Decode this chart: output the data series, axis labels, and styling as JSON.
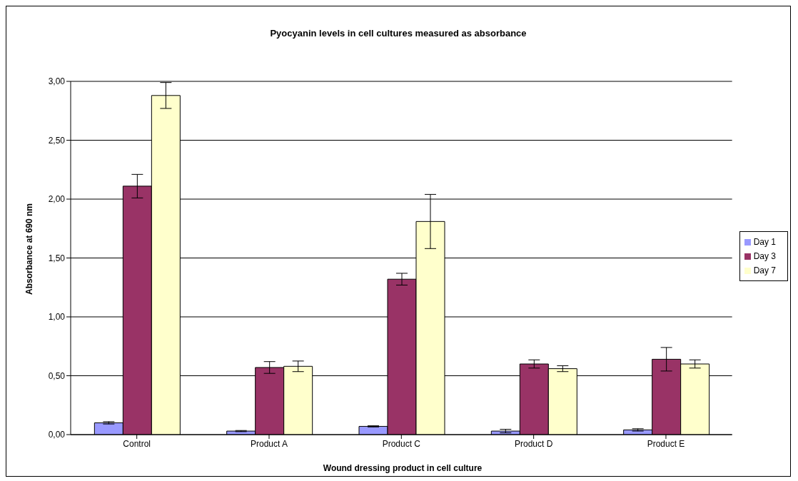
{
  "chart_data": {
    "type": "bar",
    "title": "Pyocyanin levels in cell cultures measured as absorbance",
    "xlabel": "Wound dressing product in cell culture",
    "ylabel": "Absorbance at 690 nm",
    "categories": [
      "Control",
      "Product A",
      "Product C",
      "Product D",
      "Product E"
    ],
    "series": [
      {
        "name": "Day 1",
        "color": "#9999ff",
        "values": [
          0.1,
          0.03,
          0.07,
          0.03,
          0.04
        ],
        "errors": [
          0.01,
          0.005,
          0.005,
          0.015,
          0.01
        ]
      },
      {
        "name": "Day 3",
        "color": "#993366",
        "values": [
          2.11,
          0.57,
          1.32,
          0.6,
          0.64
        ],
        "errors": [
          0.1,
          0.05,
          0.05,
          0.035,
          0.1
        ]
      },
      {
        "name": "Day 7",
        "color": "#ffffcc",
        "values": [
          2.88,
          0.58,
          1.81,
          0.56,
          0.6
        ],
        "errors": [
          0.11,
          0.045,
          0.23,
          0.025,
          0.035
        ]
      }
    ],
    "ylim": [
      0,
      3
    ],
    "yticks": [
      {
        "value": 0,
        "label": "0,00"
      },
      {
        "value": 0.5,
        "label": "0,50"
      },
      {
        "value": 1,
        "label": "1,00"
      },
      {
        "value": 1.5,
        "label": "1,50"
      },
      {
        "value": 2,
        "label": "2,00"
      },
      {
        "value": 2.5,
        "label": "2,50"
      },
      {
        "value": 3,
        "label": "3,00"
      }
    ],
    "grid": "y",
    "legend": "right"
  }
}
